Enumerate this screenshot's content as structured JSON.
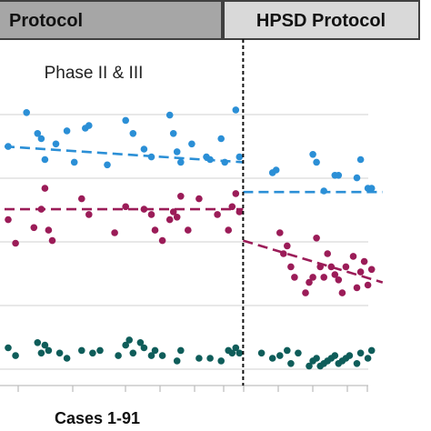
{
  "colors": {
    "blue": "#2b8fd6",
    "magenta": "#9b1c58",
    "teal": "#0f5d5a",
    "header_left_bg": "#a6a6a6",
    "header_right_bg": "#d9d9d9",
    "grid": "#d9d9d9"
  },
  "chart_data": {
    "type": "scatter",
    "headers": [
      "Protocol",
      "HPSD Protocol"
    ],
    "annotation": "Phase II & III",
    "xlabel": "Cases 1-91",
    "grid": true,
    "divider_x": 65,
    "xlim": [
      0,
      109
    ],
    "ylim": [
      0,
      7
    ],
    "series": [
      {
        "color": "blue",
        "points": [
          [
            1,
            4.85
          ],
          [
            6,
            5.5
          ],
          [
            9,
            5.1
          ],
          [
            10,
            5.0
          ],
          [
            11,
            4.6
          ],
          [
            14,
            4.9
          ],
          [
            17,
            5.15
          ],
          [
            19,
            4.55
          ],
          [
            22,
            5.2
          ],
          [
            23,
            5.25
          ],
          [
            28,
            4.5
          ],
          [
            33,
            5.35
          ],
          [
            35,
            5.1
          ],
          [
            38,
            4.8
          ],
          [
            40,
            4.65
          ],
          [
            45,
            5.45
          ],
          [
            46,
            5.1
          ],
          [
            47,
            4.75
          ],
          [
            48,
            4.55
          ],
          [
            51,
            4.9
          ],
          [
            55,
            4.65
          ],
          [
            56,
            4.6
          ],
          [
            59,
            5.0
          ],
          [
            60,
            4.55
          ],
          [
            63,
            5.55
          ],
          [
            64,
            4.65
          ],
          [
            73,
            4.35
          ],
          [
            74,
            4.4
          ],
          [
            84,
            4.7
          ],
          [
            85,
            4.55
          ],
          [
            87,
            4.0
          ],
          [
            90,
            4.3
          ],
          [
            91,
            4.3
          ],
          [
            96,
            4.25
          ],
          [
            97,
            4.6
          ],
          [
            99,
            4.05
          ],
          [
            100,
            4.05
          ]
        ],
        "trend": [
          [
            0,
            4.85
          ],
          [
            65,
            4.55
          ]
        ],
        "trend2": [
          [
            65,
            3.98
          ],
          [
            103,
            3.98
          ]
        ]
      },
      {
        "color": "magenta",
        "points": [
          [
            1,
            3.45
          ],
          [
            3,
            3.0
          ],
          [
            8,
            3.3
          ],
          [
            10,
            3.65
          ],
          [
            11,
            4.05
          ],
          [
            12,
            3.25
          ],
          [
            13,
            3.05
          ],
          [
            21,
            3.85
          ],
          [
            23,
            3.55
          ],
          [
            30,
            3.2
          ],
          [
            33,
            3.7
          ],
          [
            38,
            3.65
          ],
          [
            40,
            3.55
          ],
          [
            41,
            3.25
          ],
          [
            43,
            3.05
          ],
          [
            45,
            3.45
          ],
          [
            46,
            3.6
          ],
          [
            47,
            3.5
          ],
          [
            48,
            3.9
          ],
          [
            50,
            3.25
          ],
          [
            53,
            3.85
          ],
          [
            58,
            3.55
          ],
          [
            61,
            3.25
          ],
          [
            62,
            3.7
          ],
          [
            63,
            3.95
          ],
          [
            64,
            3.6
          ],
          [
            75,
            3.2
          ],
          [
            76,
            2.8
          ],
          [
            77,
            2.95
          ],
          [
            78,
            2.55
          ],
          [
            79,
            2.35
          ],
          [
            82,
            2.05
          ],
          [
            83,
            2.25
          ],
          [
            84,
            2.35
          ],
          [
            85,
            3.1
          ],
          [
            86,
            2.55
          ],
          [
            87,
            2.35
          ],
          [
            88,
            2.8
          ],
          [
            89,
            2.55
          ],
          [
            90,
            2.4
          ],
          [
            91,
            2.3
          ],
          [
            92,
            2.05
          ],
          [
            93,
            2.55
          ],
          [
            95,
            2.75
          ],
          [
            96,
            2.15
          ],
          [
            97,
            2.45
          ],
          [
            98,
            2.65
          ],
          [
            99,
            2.2
          ],
          [
            100,
            2.5
          ]
        ],
        "trend": [
          [
            0,
            3.65
          ],
          [
            65,
            3.65
          ]
        ],
        "trend2": [
          [
            65,
            3.05
          ],
          [
            103,
            2.25
          ]
        ]
      },
      {
        "color": "teal",
        "points": [
          [
            1,
            1.0
          ],
          [
            3,
            0.85
          ],
          [
            9,
            1.1
          ],
          [
            10,
            0.9
          ],
          [
            11,
            1.05
          ],
          [
            12,
            0.95
          ],
          [
            15,
            0.9
          ],
          [
            17,
            0.8
          ],
          [
            21,
            0.95
          ],
          [
            24,
            0.9
          ],
          [
            26,
            0.95
          ],
          [
            31,
            0.85
          ],
          [
            33,
            1.05
          ],
          [
            34,
            1.15
          ],
          [
            35,
            0.9
          ],
          [
            37,
            1.1
          ],
          [
            38,
            1.0
          ],
          [
            40,
            0.85
          ],
          [
            41,
            0.95
          ],
          [
            43,
            0.85
          ],
          [
            47,
            0.75
          ],
          [
            48,
            0.95
          ],
          [
            53,
            0.8
          ],
          [
            56,
            0.8
          ],
          [
            59,
            0.75
          ],
          [
            61,
            0.95
          ],
          [
            62,
            0.9
          ],
          [
            63,
            1.0
          ],
          [
            64,
            0.9
          ],
          [
            70,
            0.9
          ],
          [
            73,
            0.8
          ],
          [
            75,
            0.85
          ],
          [
            77,
            0.95
          ],
          [
            78,
            0.7
          ],
          [
            80,
            0.9
          ],
          [
            83,
            0.65
          ],
          [
            84,
            0.75
          ],
          [
            85,
            0.8
          ],
          [
            86,
            0.65
          ],
          [
            87,
            0.7
          ],
          [
            88,
            0.75
          ],
          [
            89,
            0.8
          ],
          [
            90,
            0.85
          ],
          [
            91,
            0.7
          ],
          [
            92,
            0.75
          ],
          [
            93,
            0.8
          ],
          [
            94,
            0.85
          ],
          [
            96,
            0.7
          ],
          [
            97,
            0.9
          ],
          [
            99,
            0.8
          ],
          [
            100,
            0.95
          ]
        ]
      }
    ]
  }
}
